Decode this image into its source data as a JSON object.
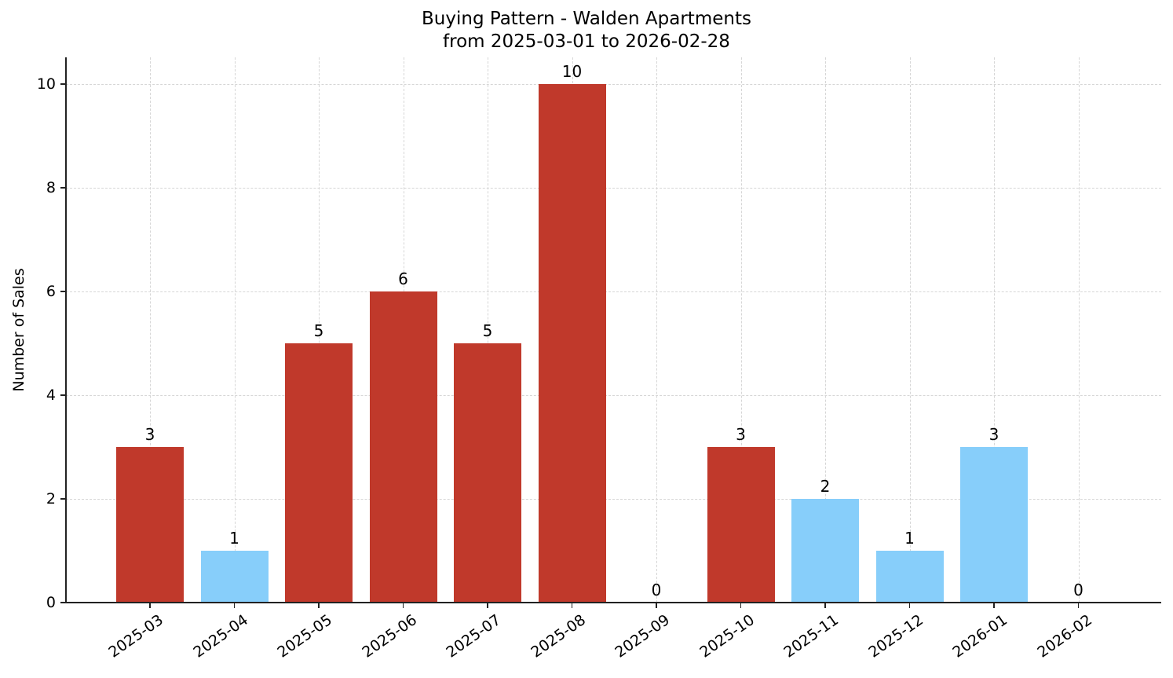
{
  "chart_data": {
    "type": "bar",
    "title": "Buying Pattern - Walden Apartments",
    "subtitle": "from 2025-03-01 to 2026-02-28",
    "xlabel": "",
    "ylabel": "Number of Sales",
    "ylim": [
      0,
      10.5
    ],
    "yticks": [
      0,
      2,
      4,
      6,
      8,
      10
    ],
    "grid": true,
    "legend": null,
    "categories": [
      "2025-03",
      "2025-04",
      "2025-05",
      "2025-06",
      "2025-07",
      "2025-08",
      "2025-09",
      "2025-10",
      "2025-11",
      "2025-12",
      "2026-01",
      "2026-02"
    ],
    "values": [
      3,
      1,
      5,
      6,
      5,
      10,
      0,
      3,
      2,
      1,
      3,
      0
    ],
    "bar_colors": [
      "#c0392b",
      "#87cefa",
      "#c0392b",
      "#c0392b",
      "#c0392b",
      "#c0392b",
      "#c0392b",
      "#c0392b",
      "#87cefa",
      "#87cefa",
      "#87cefa",
      "#c0392b"
    ],
    "data_labels": [
      "3",
      "1",
      "5",
      "6",
      "5",
      "10",
      "0",
      "3",
      "2",
      "1",
      "3",
      "0"
    ]
  },
  "colors": {
    "high": "#c0392b",
    "low": "#87cefa",
    "axis": "#222222",
    "grid": "#d6d6d6"
  }
}
